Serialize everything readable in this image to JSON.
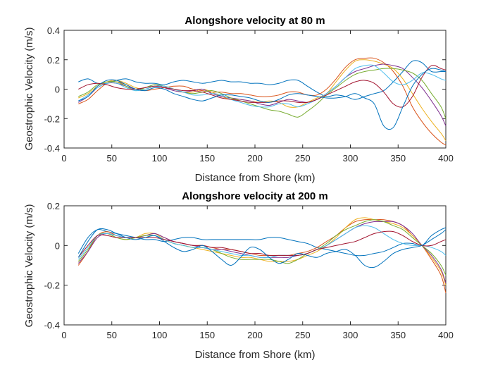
{
  "chart_data": [
    {
      "type": "line",
      "title": "Alongshore velocity at 80 m",
      "xlabel": "Distance from Shore (km)",
      "ylabel": "Geostrophic Velocity (m/s)",
      "xlim": [
        0,
        400
      ],
      "ylim": [
        -0.4,
        0.4
      ],
      "xticks": [
        0,
        50,
        100,
        150,
        200,
        250,
        300,
        350,
        400
      ],
      "yticks": [
        -0.4,
        -0.2,
        0,
        0.2,
        0.4
      ],
      "xtick_labels": [
        "0",
        "50",
        "100",
        "150",
        "200",
        "250",
        "300",
        "350",
        "400"
      ],
      "ytick_labels": [
        "-0.4",
        "-0.2",
        "0",
        "0.2",
        "0.4"
      ],
      "grid": false,
      "x": [
        15,
        25,
        35,
        45,
        55,
        65,
        75,
        85,
        95,
        105,
        115,
        125,
        135,
        145,
        155,
        165,
        175,
        185,
        195,
        205,
        215,
        225,
        235,
        245,
        255,
        265,
        275,
        285,
        295,
        305,
        315,
        325,
        335,
        345,
        355,
        365,
        375,
        385,
        395,
        400
      ],
      "series": [
        {
          "color": "#0072BD",
          "values": [
            0.05,
            0.07,
            0.04,
            0.04,
            0.06,
            0.07,
            0.05,
            0.04,
            0.04,
            0.03,
            0.05,
            0.06,
            0.05,
            0.04,
            0.05,
            0.06,
            0.05,
            0.05,
            0.04,
            0.04,
            0.03,
            0.04,
            0.06,
            0.06,
            0.02,
            -0.02,
            -0.05,
            -0.04,
            -0.05,
            -0.07,
            -0.05,
            -0.03,
            -0.01,
            0.05,
            0.12,
            0.19,
            0.18,
            0.12,
            0.12,
            0.12
          ]
        },
        {
          "color": "#D95319",
          "values": [
            -0.1,
            -0.07,
            -0.01,
            0.04,
            0.05,
            0.03,
            0.0,
            -0.01,
            0.0,
            0.01,
            0.02,
            0.02,
            0.0,
            -0.01,
            -0.02,
            -0.02,
            -0.03,
            -0.03,
            -0.04,
            -0.05,
            -0.05,
            -0.04,
            -0.02,
            -0.02,
            -0.04,
            -0.04,
            0.0,
            0.07,
            0.15,
            0.2,
            0.21,
            0.21,
            0.18,
            0.12,
            0.02,
            -0.12,
            -0.22,
            -0.3,
            -0.36,
            -0.38
          ]
        },
        {
          "color": "#EDB120",
          "values": [
            -0.06,
            -0.03,
            0.02,
            0.05,
            0.06,
            0.04,
            0.01,
            0.0,
            0.02,
            0.02,
            0.0,
            -0.02,
            -0.02,
            0.0,
            -0.02,
            -0.05,
            -0.07,
            -0.07,
            -0.08,
            -0.09,
            -0.08,
            -0.09,
            -0.12,
            -0.12,
            -0.09,
            -0.06,
            -0.03,
            0.05,
            0.13,
            0.19,
            0.2,
            0.19,
            0.17,
            0.14,
            0.07,
            -0.03,
            -0.13,
            -0.22,
            -0.3,
            -0.35
          ]
        },
        {
          "color": "#7E2F8E",
          "values": [
            -0.09,
            -0.05,
            0.01,
            0.04,
            0.04,
            0.02,
            0.0,
            0.01,
            0.03,
            0.01,
            -0.01,
            -0.02,
            -0.01,
            0.0,
            -0.03,
            -0.05,
            -0.06,
            -0.07,
            -0.08,
            -0.1,
            -0.11,
            -0.09,
            -0.07,
            -0.08,
            -0.09,
            -0.07,
            -0.03,
            0.02,
            0.08,
            0.12,
            0.14,
            0.16,
            0.17,
            0.16,
            0.14,
            0.08,
            0.01,
            -0.08,
            -0.18,
            -0.25
          ]
        },
        {
          "color": "#77AC30",
          "values": [
            -0.05,
            -0.02,
            0.03,
            0.05,
            0.05,
            0.02,
            -0.01,
            0.01,
            0.03,
            0.02,
            0.0,
            -0.02,
            -0.03,
            -0.02,
            -0.01,
            -0.03,
            -0.06,
            -0.08,
            -0.1,
            -0.12,
            -0.14,
            -0.15,
            -0.17,
            -0.19,
            -0.15,
            -0.1,
            -0.04,
            0.01,
            0.06,
            0.1,
            0.12,
            0.13,
            0.14,
            0.14,
            0.13,
            0.11,
            0.06,
            -0.03,
            -0.12,
            -0.2
          ]
        },
        {
          "color": "#4DBEEE",
          "values": [
            -0.08,
            -0.04,
            0.01,
            0.04,
            0.04,
            0.01,
            -0.01,
            0.0,
            0.02,
            0.02,
            0.0,
            -0.02,
            -0.04,
            -0.04,
            -0.03,
            -0.04,
            -0.07,
            -0.09,
            -0.11,
            -0.12,
            -0.12,
            -0.1,
            -0.1,
            -0.12,
            -0.1,
            -0.07,
            -0.03,
            0.02,
            0.08,
            0.14,
            0.16,
            0.16,
            0.11,
            0.05,
            0.03,
            0.06,
            0.11,
            0.1,
            0.07,
            0.06
          ]
        },
        {
          "color": "#A2142F",
          "values": [
            0.0,
            0.03,
            0.04,
            0.03,
            0.01,
            0.0,
            0.0,
            0.01,
            0.02,
            0.01,
            0.0,
            -0.01,
            -0.01,
            -0.02,
            -0.04,
            -0.06,
            -0.07,
            -0.08,
            -0.09,
            -0.09,
            -0.09,
            -0.08,
            -0.08,
            -0.09,
            -0.09,
            -0.07,
            -0.04,
            -0.01,
            0.02,
            0.05,
            0.06,
            0.04,
            -0.02,
            -0.1,
            -0.12,
            -0.05,
            0.08,
            0.16,
            0.14,
            0.13
          ]
        },
        {
          "color": "#0072BD",
          "values": [
            -0.08,
            -0.05,
            0.02,
            0.06,
            0.06,
            0.03,
            0.0,
            -0.01,
            0.01,
            0.0,
            -0.03,
            -0.05,
            -0.07,
            -0.08,
            -0.06,
            -0.04,
            -0.04,
            -0.05,
            -0.06,
            -0.08,
            -0.09,
            -0.07,
            -0.04,
            -0.03,
            -0.04,
            -0.05,
            -0.06,
            -0.06,
            -0.05,
            -0.03,
            -0.06,
            -0.1,
            -0.25,
            -0.26,
            -0.12,
            0.02,
            0.1,
            0.14,
            0.13,
            0.12
          ]
        }
      ]
    },
    {
      "type": "line",
      "title": "Alongshore velocity at 200 m",
      "xlabel": "Distance from Shore (km)",
      "ylabel": "Geostrophic Velocity (m/s)",
      "xlim": [
        0,
        400
      ],
      "ylim": [
        -0.4,
        0.2
      ],
      "xticks": [
        0,
        50,
        100,
        150,
        200,
        250,
        300,
        350,
        400
      ],
      "yticks": [
        -0.4,
        -0.2,
        0,
        0.2
      ],
      "xtick_labels": [
        "0",
        "50",
        "100",
        "150",
        "200",
        "250",
        "300",
        "350",
        "400"
      ],
      "ytick_labels": [
        "-0.4",
        "-0.2",
        "0",
        "0.2"
      ],
      "grid": false,
      "x": [
        15,
        25,
        35,
        45,
        55,
        65,
        75,
        85,
        95,
        105,
        115,
        125,
        135,
        145,
        155,
        165,
        175,
        185,
        195,
        205,
        215,
        225,
        235,
        245,
        255,
        265,
        275,
        285,
        295,
        305,
        315,
        325,
        335,
        345,
        355,
        365,
        375,
        385,
        395,
        400
      ],
      "series": [
        {
          "color": "#0072BD",
          "values": [
            -0.04,
            0.04,
            0.08,
            0.07,
            0.06,
            0.05,
            0.04,
            0.03,
            0.03,
            0.02,
            0.03,
            0.04,
            0.04,
            0.03,
            0.03,
            0.03,
            0.03,
            0.03,
            0.03,
            0.03,
            0.04,
            0.04,
            0.03,
            0.02,
            0.01,
            -0.01,
            -0.02,
            -0.03,
            -0.04,
            -0.05,
            -0.05,
            -0.04,
            -0.03,
            -0.01,
            0.01,
            0.01,
            0.0,
            0.05,
            0.08,
            0.09
          ]
        },
        {
          "color": "#D95319",
          "values": [
            -0.1,
            -0.03,
            0.05,
            0.07,
            0.05,
            0.04,
            0.04,
            0.05,
            0.06,
            0.04,
            0.02,
            0.01,
            0.0,
            0.0,
            -0.01,
            -0.02,
            -0.02,
            -0.03,
            -0.04,
            -0.05,
            -0.05,
            -0.05,
            -0.05,
            -0.04,
            -0.03,
            -0.01,
            0.02,
            0.05,
            0.09,
            0.12,
            0.13,
            0.13,
            0.13,
            0.12,
            0.1,
            0.05,
            0.0,
            -0.07,
            -0.15,
            -0.24
          ]
        },
        {
          "color": "#EDB120",
          "values": [
            -0.08,
            -0.02,
            0.05,
            0.06,
            0.04,
            0.03,
            0.04,
            0.06,
            0.06,
            0.03,
            0.01,
            0.0,
            -0.01,
            -0.02,
            -0.03,
            -0.04,
            -0.05,
            -0.06,
            -0.06,
            -0.07,
            -0.08,
            -0.08,
            -0.08,
            -0.07,
            -0.05,
            -0.03,
            0.0,
            0.04,
            0.09,
            0.13,
            0.14,
            0.13,
            0.12,
            0.11,
            0.09,
            0.05,
            0.0,
            -0.06,
            -0.13,
            -0.2
          ]
        },
        {
          "color": "#7E2F8E",
          "values": [
            -0.09,
            -0.03,
            0.04,
            0.06,
            0.05,
            0.04,
            0.04,
            0.05,
            0.06,
            0.04,
            0.02,
            0.01,
            0.0,
            -0.01,
            -0.02,
            -0.02,
            -0.03,
            -0.04,
            -0.05,
            -0.06,
            -0.06,
            -0.06,
            -0.06,
            -0.05,
            -0.04,
            -0.02,
            0.0,
            0.03,
            0.06,
            0.09,
            0.11,
            0.12,
            0.12,
            0.12,
            0.1,
            0.06,
            0.0,
            -0.05,
            -0.12,
            -0.19
          ]
        },
        {
          "color": "#77AC30",
          "values": [
            -0.08,
            -0.02,
            0.05,
            0.06,
            0.04,
            0.03,
            0.04,
            0.05,
            0.05,
            0.03,
            0.01,
            0.0,
            -0.01,
            -0.01,
            -0.02,
            -0.04,
            -0.06,
            -0.07,
            -0.07,
            -0.07,
            -0.07,
            -0.08,
            -0.09,
            -0.07,
            -0.04,
            -0.02,
            0.01,
            0.05,
            0.08,
            0.1,
            0.12,
            0.13,
            0.12,
            0.1,
            0.08,
            0.04,
            0.0,
            -0.04,
            -0.1,
            -0.15
          ]
        },
        {
          "color": "#4DBEEE",
          "values": [
            -0.07,
            -0.01,
            0.05,
            0.06,
            0.05,
            0.04,
            0.04,
            0.04,
            0.05,
            0.03,
            0.01,
            0.0,
            -0.01,
            -0.01,
            -0.02,
            -0.03,
            -0.04,
            -0.05,
            -0.05,
            -0.06,
            -0.06,
            -0.05,
            -0.05,
            -0.05,
            -0.04,
            -0.02,
            0.0,
            0.03,
            0.06,
            0.09,
            0.1,
            0.09,
            0.06,
            0.03,
            0.01,
            0.0,
            0.0,
            -0.01,
            -0.03,
            -0.05
          ]
        },
        {
          "color": "#A2142F",
          "values": [
            -0.06,
            0.0,
            0.05,
            0.05,
            0.04,
            0.04,
            0.04,
            0.04,
            0.04,
            0.03,
            0.02,
            0.01,
            0.0,
            0.0,
            -0.01,
            -0.01,
            -0.02,
            -0.03,
            -0.04,
            -0.04,
            -0.05,
            -0.05,
            -0.05,
            -0.05,
            -0.04,
            -0.02,
            -0.01,
            0.0,
            0.01,
            0.02,
            0.04,
            0.06,
            0.07,
            0.07,
            0.05,
            0.02,
            0.0,
            0.0,
            0.02,
            0.03
          ]
        },
        {
          "color": "#0072BD",
          "values": [
            -0.06,
            0.02,
            0.08,
            0.08,
            0.06,
            0.04,
            0.03,
            0.04,
            0.05,
            0.02,
            -0.01,
            -0.03,
            -0.02,
            0.0,
            -0.03,
            -0.07,
            -0.1,
            -0.06,
            -0.01,
            -0.02,
            -0.06,
            -0.09,
            -0.07,
            -0.04,
            -0.05,
            -0.06,
            -0.04,
            -0.03,
            -0.02,
            -0.05,
            -0.1,
            -0.11,
            -0.08,
            -0.04,
            -0.02,
            -0.01,
            0.0,
            0.03,
            0.06,
            0.08
          ]
        }
      ]
    }
  ]
}
